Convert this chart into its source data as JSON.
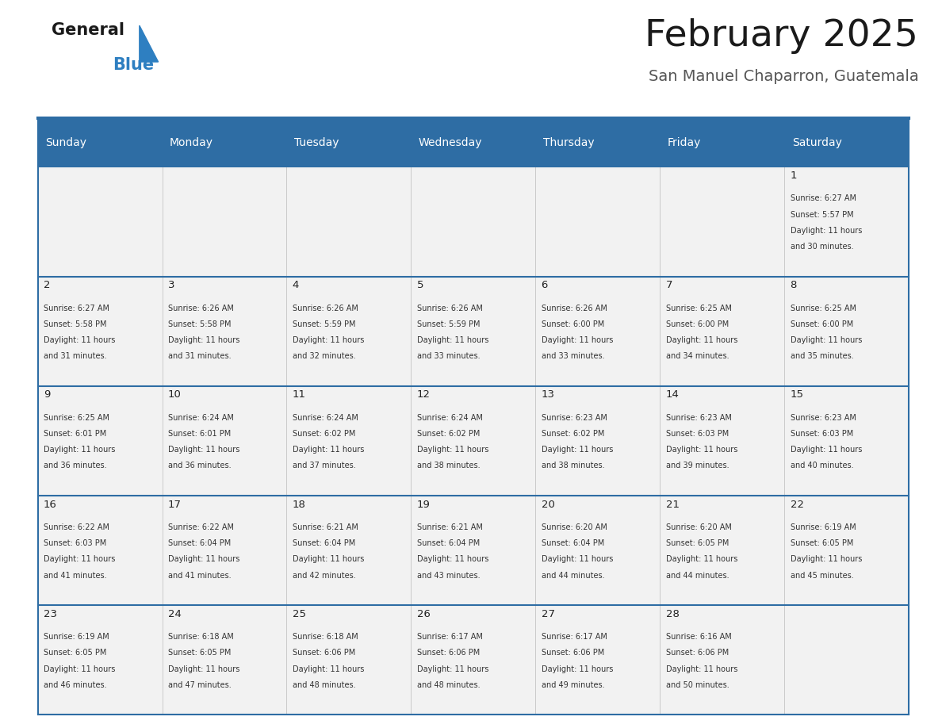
{
  "title": "February 2025",
  "subtitle": "San Manuel Chaparron, Guatemala",
  "header_bg": "#2E6DA4",
  "header_text_color": "#FFFFFF",
  "cell_bg": "#F2F2F2",
  "border_color": "#2E6DA4",
  "text_color": "#333333",
  "day_number_color": "#222222",
  "day_names": [
    "Sunday",
    "Monday",
    "Tuesday",
    "Wednesday",
    "Thursday",
    "Friday",
    "Saturday"
  ],
  "logo_color1": "#1a1a1a",
  "logo_color2": "#2E7FC1",
  "logo_triangle_color": "#2E7FC1",
  "title_color": "#1a1a1a",
  "subtitle_color": "#555555",
  "calendar": [
    [
      null,
      null,
      null,
      null,
      null,
      null,
      1
    ],
    [
      2,
      3,
      4,
      5,
      6,
      7,
      8
    ],
    [
      9,
      10,
      11,
      12,
      13,
      14,
      15
    ],
    [
      16,
      17,
      18,
      19,
      20,
      21,
      22
    ],
    [
      23,
      24,
      25,
      26,
      27,
      28,
      null
    ]
  ],
  "sunrise": {
    "1": "6:27 AM",
    "2": "6:27 AM",
    "3": "6:26 AM",
    "4": "6:26 AM",
    "5": "6:26 AM",
    "6": "6:26 AM",
    "7": "6:25 AM",
    "8": "6:25 AM",
    "9": "6:25 AM",
    "10": "6:24 AM",
    "11": "6:24 AM",
    "12": "6:24 AM",
    "13": "6:23 AM",
    "14": "6:23 AM",
    "15": "6:23 AM",
    "16": "6:22 AM",
    "17": "6:22 AM",
    "18": "6:21 AM",
    "19": "6:21 AM",
    "20": "6:20 AM",
    "21": "6:20 AM",
    "22": "6:19 AM",
    "23": "6:19 AM",
    "24": "6:18 AM",
    "25": "6:18 AM",
    "26": "6:17 AM",
    "27": "6:17 AM",
    "28": "6:16 AM"
  },
  "sunset": {
    "1": "5:57 PM",
    "2": "5:58 PM",
    "3": "5:58 PM",
    "4": "5:59 PM",
    "5": "5:59 PM",
    "6": "6:00 PM",
    "7": "6:00 PM",
    "8": "6:00 PM",
    "9": "6:01 PM",
    "10": "6:01 PM",
    "11": "6:02 PM",
    "12": "6:02 PM",
    "13": "6:02 PM",
    "14": "6:03 PM",
    "15": "6:03 PM",
    "16": "6:03 PM",
    "17": "6:04 PM",
    "18": "6:04 PM",
    "19": "6:04 PM",
    "20": "6:04 PM",
    "21": "6:05 PM",
    "22": "6:05 PM",
    "23": "6:05 PM",
    "24": "6:05 PM",
    "25": "6:06 PM",
    "26": "6:06 PM",
    "27": "6:06 PM",
    "28": "6:06 PM"
  },
  "daylight_minutes": {
    "1": 30,
    "2": 31,
    "3": 31,
    "4": 32,
    "5": 33,
    "6": 33,
    "7": 34,
    "8": 35,
    "9": 36,
    "10": 36,
    "11": 37,
    "12": 38,
    "13": 38,
    "14": 39,
    "15": 40,
    "16": 41,
    "17": 41,
    "18": 42,
    "19": 43,
    "20": 44,
    "21": 44,
    "22": 45,
    "23": 46,
    "24": 47,
    "25": 48,
    "26": 48,
    "27": 49,
    "28": 50
  }
}
